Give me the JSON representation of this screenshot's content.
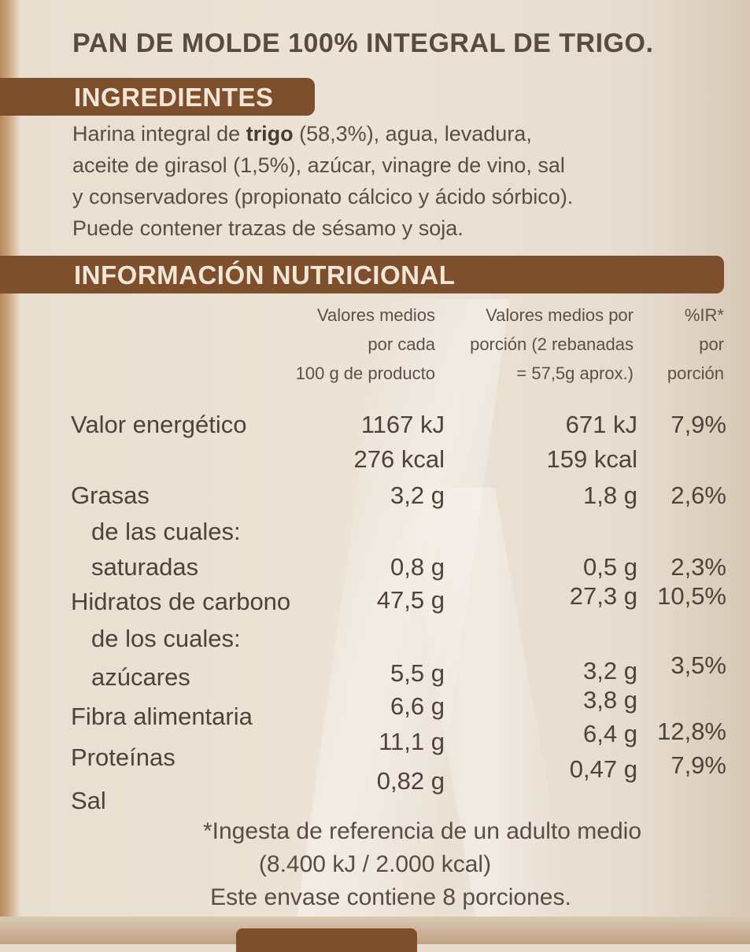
{
  "product_title": "PAN DE MOLDE 100% INTEGRAL DE TRIGO.",
  "ingredients": {
    "heading": "INGREDIENTES",
    "line1_a": "Harina integral de ",
    "line1_b": "trigo",
    "line1_c": " (58,3%), agua, levadura,",
    "line2": "aceite de girasol (1,5%), azúcar, vinagre de vino, sal",
    "line3": "y conservadores (propionato cálcico y ácido sórbico).",
    "line4": "Puede contener trazas de sésamo y soja."
  },
  "nutrition": {
    "heading": "INFORMACIÓN NUTRICIONAL",
    "col_100g": [
      "Valores medios",
      "por cada",
      "100 g de producto"
    ],
    "col_portion": [
      "Valores medios por",
      "porción (2 rebanadas",
      "= 57,5g aprox.)"
    ],
    "col_ir": [
      "%IR*",
      "por",
      "porción"
    ],
    "rows": [
      {
        "label": "Valor energético",
        "per100": "1167 kJ",
        "portion": "671 kJ",
        "ir": "7,9%"
      },
      {
        "label": "",
        "per100": "276 kcal",
        "portion": "159 kcal",
        "ir": ""
      },
      {
        "label": "Grasas",
        "per100": "3,2 g",
        "portion": "1,8 g",
        "ir": "2,6%"
      },
      {
        "label": "de las cuales:",
        "per100": "",
        "portion": "",
        "ir": ""
      },
      {
        "label": "saturadas",
        "per100": "0,8 g",
        "portion": "0,5 g",
        "ir": "2,3%"
      },
      {
        "label": "Hidratos de carbono",
        "per100": "47,5 g",
        "portion": "27,3 g",
        "ir": "10,5%"
      },
      {
        "label": "de los cuales:",
        "per100": "",
        "portion": "",
        "ir": ""
      },
      {
        "label": "azúcares",
        "per100": "5,5 g",
        "portion": "3,2 g",
        "ir": "3,5%"
      },
      {
        "label": "Fibra alimentaria",
        "per100": "6,6 g",
        "portion": "3,8 g",
        "ir": ""
      },
      {
        "label": "Proteínas",
        "per100": "11,1 g",
        "portion": "6,4 g",
        "ir": "12,8%"
      },
      {
        "label": "Sal",
        "per100": "0,82 g",
        "portion": "0,47 g",
        "ir": "7,9%"
      }
    ]
  },
  "footnote": {
    "line1": "*Ingesta de referencia de un adulto medio",
    "line2": "(8.400 kJ / 2.000 kcal)",
    "line3": "Este envase contiene 8 porciones."
  },
  "colors": {
    "band": "#7d4f2d",
    "band_text": "#f3e6d6",
    "text": "#4f423b",
    "paper": "#ece3d6"
  }
}
